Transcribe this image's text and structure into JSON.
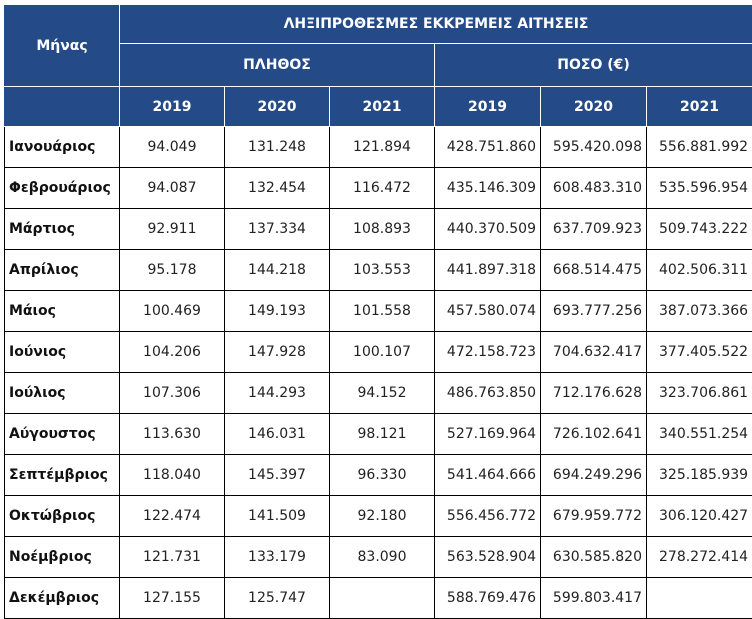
{
  "header": {
    "month_label": "Μήνας",
    "group_title": "ΛΗΞΙΠΡΟΘΕΣΜΕΣ ΕΚΚΡΕΜΕΙΣ ΑΙΤΗΣΕΙΣ",
    "count_label": "ΠΛΗΘΟΣ",
    "amount_label": "ΠΟΣΟ (€)",
    "years": [
      "2019",
      "2020",
      "2021"
    ]
  },
  "rows": [
    {
      "month": "Ιανουάριος",
      "counts": [
        "94.049",
        "131.248",
        "121.894"
      ],
      "amounts": [
        "428.751.860",
        "595.420.098",
        "556.881.992"
      ]
    },
    {
      "month": "Φεβρουάριος",
      "counts": [
        "94.087",
        "132.454",
        "116.472"
      ],
      "amounts": [
        "435.146.309",
        "608.483.310",
        "535.596.954"
      ]
    },
    {
      "month": "Μάρτιος",
      "counts": [
        "92.911",
        "137.334",
        "108.893"
      ],
      "amounts": [
        "440.370.509",
        "637.709.923",
        "509.743.222"
      ]
    },
    {
      "month": "Απρίλιος",
      "counts": [
        "95.178",
        "144.218",
        "103.553"
      ],
      "amounts": [
        "441.897.318",
        "668.514.475",
        "402.506.311"
      ]
    },
    {
      "month": "Μάιος",
      "counts": [
        "100.469",
        "149.193",
        "101.558"
      ],
      "amounts": [
        "457.580.074",
        "693.777.256",
        "387.073.366"
      ]
    },
    {
      "month": "Ιούνιος",
      "counts": [
        "104.206",
        "147.928",
        "100.107"
      ],
      "amounts": [
        "472.158.723",
        "704.632.417",
        "377.405.522"
      ]
    },
    {
      "month": "Ιούλιος",
      "counts": [
        "107.306",
        "144.293",
        "94.152"
      ],
      "amounts": [
        "486.763.850",
        "712.176.628",
        "323.706.861"
      ]
    },
    {
      "month": "Αύγουστος",
      "counts": [
        "113.630",
        "146.031",
        "98.121"
      ],
      "amounts": [
        "527.169.964",
        "726.102.641",
        "340.551.254"
      ]
    },
    {
      "month": "Σεπτέμβριος",
      "counts": [
        "118.040",
        "145.397",
        "96.330"
      ],
      "amounts": [
        "541.464.666",
        "694.249.296",
        "325.185.939"
      ]
    },
    {
      "month": "Οκτώβριος",
      "counts": [
        "122.474",
        "141.509",
        "92.180"
      ],
      "amounts": [
        "556.456.772",
        "679.959.772",
        "306.120.427"
      ]
    },
    {
      "month": "Νοέμβριος",
      "counts": [
        "121.731",
        "133.179",
        "83.090"
      ],
      "amounts": [
        "563.528.904",
        "630.585.820",
        "278.272.414"
      ]
    },
    {
      "month": "Δεκέμβριος",
      "counts": [
        "127.155",
        "125.747",
        ""
      ],
      "amounts": [
        "588.769.476",
        "599.803.417",
        ""
      ]
    }
  ]
}
